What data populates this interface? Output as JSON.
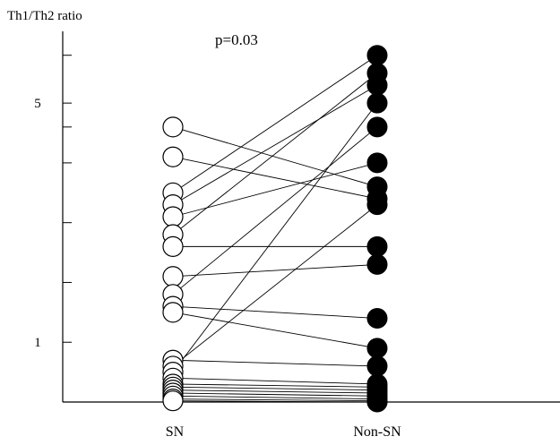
{
  "chart_data": {
    "type": "scatter",
    "ylabel": "Th1/Th2 ratio",
    "annotation": "p=0.03",
    "categories": [
      "SN",
      "Non-SN"
    ],
    "yticks": [
      1,
      5
    ],
    "ylim": [
      0,
      6.2
    ],
    "pairs": [
      [
        4.6,
        3.6
      ],
      [
        4.1,
        3.4
      ],
      [
        3.5,
        5.8
      ],
      [
        3.3,
        5.3
      ],
      [
        3.1,
        4.0
      ],
      [
        2.8,
        5.5
      ],
      [
        2.6,
        2.6
      ],
      [
        2.1,
        2.3
      ],
      [
        1.8,
        4.6
      ],
      [
        1.6,
        1.4
      ],
      [
        1.5,
        0.9
      ],
      [
        0.7,
        0.6
      ],
      [
        0.6,
        3.3
      ],
      [
        0.5,
        5.0
      ],
      [
        0.4,
        0.3
      ],
      [
        0.3,
        0.25
      ],
      [
        0.25,
        0.2
      ],
      [
        0.2,
        0.15
      ],
      [
        0.15,
        0.1
      ],
      [
        0.1,
        0.05
      ],
      [
        0.05,
        0.02
      ],
      [
        0.02,
        0.0
      ]
    ],
    "markers": {
      "SN": "open-circle",
      "Non-SN": "filled-circle"
    },
    "grid": false,
    "legend": "none"
  }
}
